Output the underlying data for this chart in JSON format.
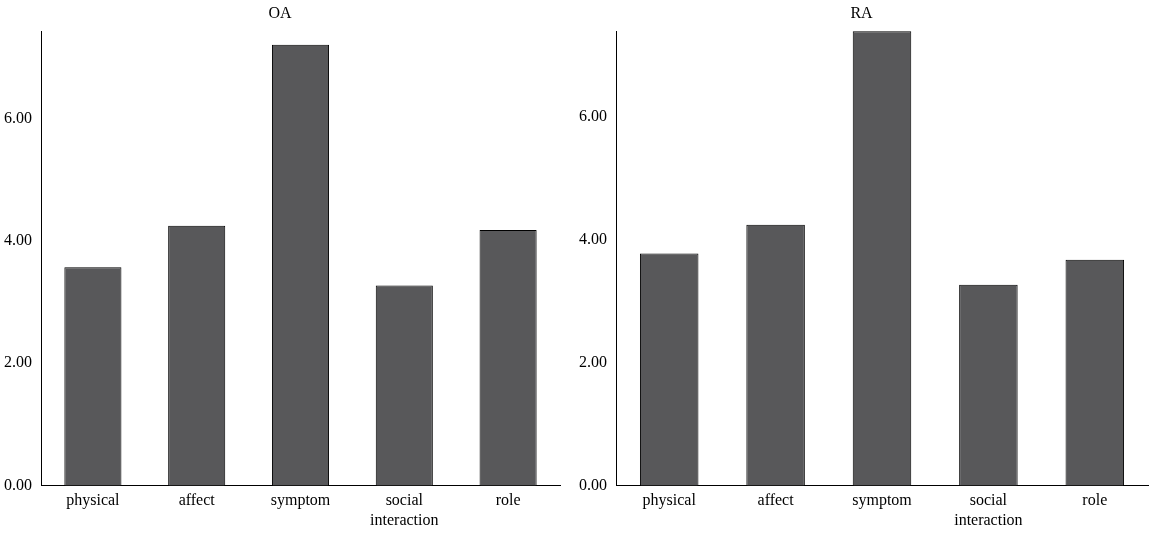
{
  "chart_data": [
    {
      "type": "bar",
      "title": "OA",
      "categories": [
        "physical",
        "affect",
        "symptom",
        "social interaction",
        "role"
      ],
      "values": [
        3.57,
        4.25,
        7.21,
        3.27,
        4.18
      ],
      "color": "#58585a",
      "ylim": [
        0,
        7.43
      ],
      "yticks": [
        {
          "value": 0,
          "label": "0.00"
        },
        {
          "value": 2,
          "label": "2.00"
        },
        {
          "value": 4,
          "label": "4.00"
        },
        {
          "value": 6,
          "label": "6.00"
        }
      ],
      "grid": false,
      "legend": false
    },
    {
      "type": "bar",
      "title": "RA",
      "categories": [
        "physical",
        "affect",
        "symptom",
        "social interaction",
        "role"
      ],
      "values": [
        3.78,
        4.25,
        7.4,
        3.27,
        3.68
      ],
      "color": "#58585a",
      "ylim": [
        0,
        7.4
      ],
      "yticks": [
        {
          "value": 0,
          "label": "0.00"
        },
        {
          "value": 2,
          "label": "2.00"
        },
        {
          "value": 4,
          "label": "4.00"
        },
        {
          "value": 6,
          "label": "6.00"
        }
      ],
      "grid": false,
      "legend": false
    }
  ]
}
